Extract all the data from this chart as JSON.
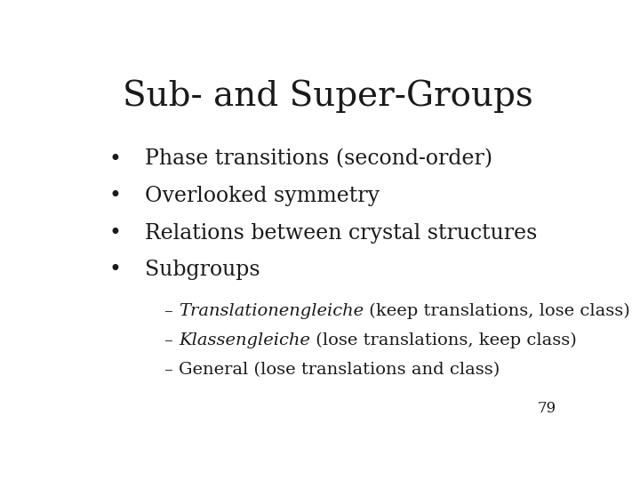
{
  "title": "Sub- and Super-Groups",
  "title_fontsize": 28,
  "title_color": "#1a1a1a",
  "background_color": "#ffffff",
  "bullet_points": [
    "Phase transitions (second-order)",
    "Overlooked symmetry",
    "Relations between crystal structures",
    "Subgroups"
  ],
  "bullet_fontsize": 17,
  "bullet_color": "#1a1a1a",
  "sub_bullets": [
    [
      "– ",
      "Translationengleiche",
      " (keep translations, lose class)"
    ],
    [
      "– ",
      "Klassengleiche",
      " (lose translations, keep class)"
    ],
    [
      "– General (lose translations and class)",
      "",
      ""
    ]
  ],
  "sub_bullet_fontsize": 14,
  "page_number": "79",
  "page_number_fontsize": 12,
  "page_number_color": "#1a1a1a"
}
